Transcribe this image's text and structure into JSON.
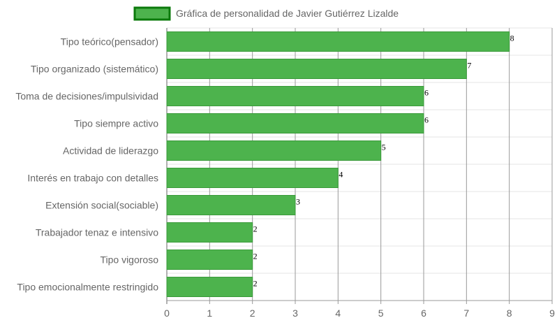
{
  "chart_data": {
    "type": "bar",
    "orientation": "horizontal",
    "categories": [
      "Tipo teórico(pensador)",
      "Tipo organizado (sistemático)",
      "Toma de decisiones/impulsividad",
      "Tipo siempre activo",
      "Actividad de liderazgo",
      "Interés en trabajo con detalles",
      "Extensión social(sociable)",
      "Trabajador tenaz e intensivo",
      "Tipo vigoroso",
      "Tipo emocionalmente restringido"
    ],
    "series": [
      {
        "name": "Gráfica de personalidad de Javier Gutiérrez Lizalde",
        "values": [
          8,
          7,
          6,
          6,
          5,
          4,
          3,
          2,
          2,
          2
        ]
      }
    ],
    "xlim": [
      0,
      9
    ],
    "xticks": [
      "0",
      "1",
      "2",
      "3",
      "4",
      "5",
      "6",
      "7",
      "8",
      "9"
    ],
    "grid": true,
    "legend_position": "top",
    "colors": {
      "bar_fill": "#4db34d",
      "bar_stroke": "#3a9a3a",
      "legend_fill": "#4db34d",
      "legend_stroke": "#0b7a0b",
      "grid_vertical": "#999999",
      "grid_horizontal": "#e5e5e5"
    }
  }
}
